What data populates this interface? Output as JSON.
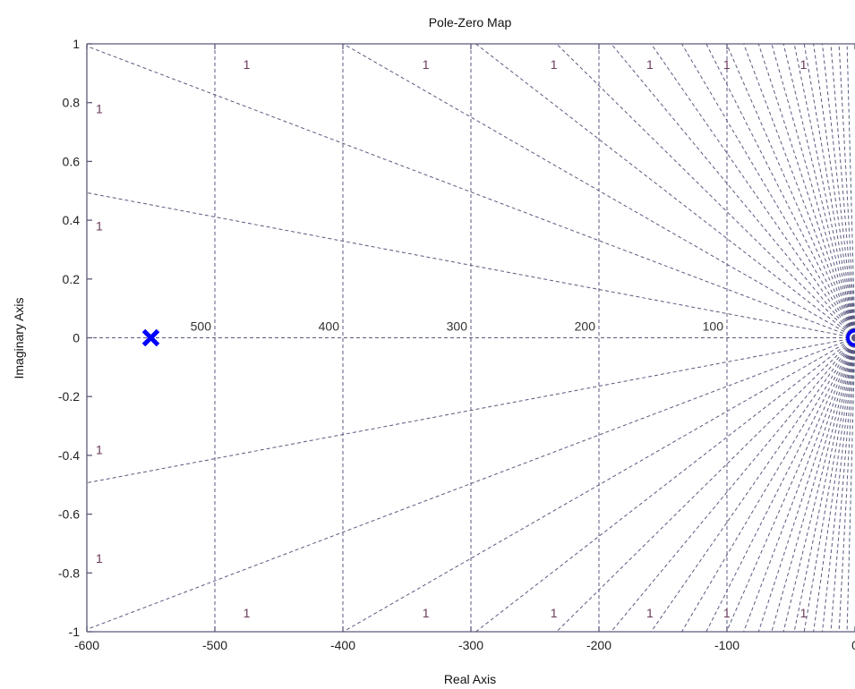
{
  "chart_data": {
    "type": "scatter",
    "title": "Pole-Zero Map",
    "xlabel": "Real Axis",
    "ylabel": "Imaginary Axis",
    "xlim": [
      -600,
      0
    ],
    "ylim": [
      -1,
      1
    ],
    "x_ticks": [
      -600,
      -500,
      -400,
      -300,
      -200,
      -100,
      0
    ],
    "x_tick_labels": [
      "-600",
      "-500",
      "-400",
      "-300",
      "-200",
      "-100",
      "0"
    ],
    "y_ticks": [
      1,
      0.8,
      0.6,
      0.4,
      0.2,
      0,
      -0.2,
      -0.4,
      -0.6,
      -0.8,
      -1
    ],
    "y_tick_labels": [
      "1",
      "0.8",
      "0.6",
      "0.4",
      "0.2",
      "0",
      "-0.2",
      "-0.4",
      "-0.6",
      "-0.8",
      "-1"
    ],
    "poles": [
      {
        "x": -550,
        "y": 0
      }
    ],
    "zeros": [
      {
        "x": 0,
        "y": 0
      }
    ],
    "natural_frequency_grid": [
      {
        "value": 500,
        "label": "500"
      },
      {
        "value": 400,
        "label": "400"
      },
      {
        "value": 300,
        "label": "300"
      },
      {
        "value": 200,
        "label": "200"
      },
      {
        "value": 100,
        "label": "100"
      }
    ],
    "damping_grid_label": "1",
    "colors": {
      "pole": "#0000ff",
      "zero": "#0000ff",
      "grid": "#5a5a80",
      "grid_label": "#6a3a5a",
      "axes": "#5a5a7a"
    },
    "grid": true
  }
}
